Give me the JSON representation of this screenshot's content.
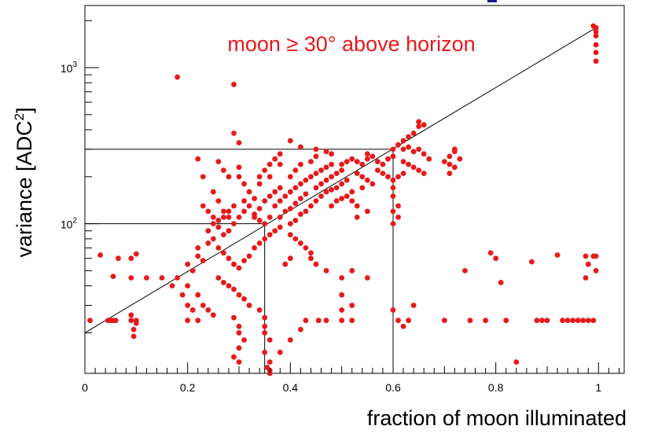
{
  "chart_data": {
    "type": "scatter",
    "annotation": "moon ≥ 30° above horizon",
    "xlabel": "fraction of moon illuminated",
    "ylabel": "variance [ADC²]",
    "ylabel_main": "variance [ADC",
    "ylabel_sup": "2",
    "ylabel_end": "]",
    "xlim": [
      0,
      1.05
    ],
    "ylim": [
      11,
      2500
    ],
    "yscale": "log",
    "x_ticks": [
      0,
      0.2,
      0.4,
      0.6,
      0.8,
      1
    ],
    "x_tick_labels": [
      "0",
      "0.2",
      "0.4",
      "0.6",
      "0.8",
      "1"
    ],
    "y_ticks": [
      100,
      1000
    ],
    "y_tick_labels": [
      {
        "base": "10",
        "exp": "2"
      },
      {
        "base": "10",
        "exp": "3"
      }
    ],
    "grid": false,
    "colors": {
      "points": "#e8191b",
      "annotation": "#e8191b",
      "lines": "#000000"
    },
    "fit_line": {
      "x": [
        0,
        0.995
      ],
      "y": [
        20,
        1800
      ]
    },
    "guide_lines": [
      {
        "x": 0.35,
        "y": 100
      },
      {
        "x": 0.6,
        "y": 300
      }
    ],
    "series": [
      {
        "points": [
          [
            0.01,
            24
          ],
          [
            0.03,
            63
          ],
          [
            0.045,
            24
          ],
          [
            0.05,
            24
          ],
          [
            0.055,
            24
          ],
          [
            0.06,
            24
          ],
          [
            0.055,
            46
          ],
          [
            0.065,
            60
          ],
          [
            0.09,
            26
          ],
          [
            0.09,
            24
          ],
          [
            0.095,
            21
          ],
          [
            0.095,
            19
          ],
          [
            0.1,
            24
          ],
          [
            0.1,
            23
          ],
          [
            0.09,
            45
          ],
          [
            0.09,
            60
          ],
          [
            0.1,
            64
          ],
          [
            0.12,
            45
          ],
          [
            0.15,
            45
          ],
          [
            0.18,
            870
          ],
          [
            0.18,
            45
          ],
          [
            0.17,
            40
          ],
          [
            0.19,
            35
          ],
          [
            0.2,
            30
          ],
          [
            0.21,
            28
          ],
          [
            0.2,
            24
          ],
          [
            0.22,
            24
          ],
          [
            0.2,
            55
          ],
          [
            0.21,
            50
          ],
          [
            0.22,
            62
          ],
          [
            0.23,
            58
          ],
          [
            0.22,
            70
          ],
          [
            0.24,
            75
          ],
          [
            0.25,
            80
          ],
          [
            0.22,
            260
          ],
          [
            0.23,
            200
          ],
          [
            0.25,
            160
          ],
          [
            0.26,
            140
          ],
          [
            0.27,
            120
          ],
          [
            0.28,
            110
          ],
          [
            0.29,
            780
          ],
          [
            0.29,
            380
          ],
          [
            0.3,
            330
          ],
          [
            0.3,
            230
          ],
          [
            0.3,
            200
          ],
          [
            0.31,
            180
          ],
          [
            0.24,
            90
          ],
          [
            0.25,
            100
          ],
          [
            0.26,
            95
          ],
          [
            0.27,
            85
          ],
          [
            0.28,
            90
          ],
          [
            0.29,
            100
          ],
          [
            0.3,
            110
          ],
          [
            0.31,
            120
          ],
          [
            0.32,
            130
          ],
          [
            0.33,
            115
          ],
          [
            0.34,
            105
          ],
          [
            0.35,
            100
          ],
          [
            0.36,
            110
          ],
          [
            0.26,
            70
          ],
          [
            0.27,
            65
          ],
          [
            0.28,
            60
          ],
          [
            0.29,
            55
          ],
          [
            0.3,
            52
          ],
          [
            0.31,
            58
          ],
          [
            0.32,
            62
          ],
          [
            0.33,
            70
          ],
          [
            0.34,
            75
          ],
          [
            0.35,
            80
          ],
          [
            0.36,
            85
          ],
          [
            0.37,
            90
          ],
          [
            0.38,
            95
          ],
          [
            0.26,
            45
          ],
          [
            0.27,
            42
          ],
          [
            0.28,
            40
          ],
          [
            0.29,
            38
          ],
          [
            0.3,
            35
          ],
          [
            0.31,
            33
          ],
          [
            0.32,
            30
          ],
          [
            0.29,
            25
          ],
          [
            0.3,
            22
          ],
          [
            0.3,
            20
          ],
          [
            0.31,
            18
          ],
          [
            0.3,
            16
          ],
          [
            0.29,
            14
          ],
          [
            0.3,
            13
          ],
          [
            0.34,
            28
          ],
          [
            0.35,
            25
          ],
          [
            0.35,
            22
          ],
          [
            0.35,
            20
          ],
          [
            0.36,
            18
          ],
          [
            0.35,
            15
          ],
          [
            0.36,
            13
          ],
          [
            0.355,
            12
          ],
          [
            0.36,
            11.5
          ],
          [
            0.36,
            11
          ],
          [
            0.33,
            110
          ],
          [
            0.34,
            125
          ],
          [
            0.35,
            140
          ],
          [
            0.36,
            150
          ],
          [
            0.37,
            160
          ],
          [
            0.38,
            170
          ],
          [
            0.37,
            130
          ],
          [
            0.38,
            140
          ],
          [
            0.39,
            150
          ],
          [
            0.4,
            160
          ],
          [
            0.41,
            170
          ],
          [
            0.42,
            180
          ],
          [
            0.38,
            110
          ],
          [
            0.39,
            120
          ],
          [
            0.4,
            125
          ],
          [
            0.41,
            135
          ],
          [
            0.42,
            145
          ],
          [
            0.43,
            155
          ],
          [
            0.4,
            100
          ],
          [
            0.41,
            105
          ],
          [
            0.42,
            115
          ],
          [
            0.43,
            120
          ],
          [
            0.44,
            130
          ],
          [
            0.45,
            140
          ],
          [
            0.4,
            85
          ],
          [
            0.41,
            80
          ],
          [
            0.42,
            75
          ],
          [
            0.43,
            70
          ],
          [
            0.44,
            65
          ],
          [
            0.4,
            60
          ],
          [
            0.39,
            55
          ],
          [
            0.43,
            190
          ],
          [
            0.44,
            200
          ],
          [
            0.45,
            210
          ],
          [
            0.46,
            220
          ],
          [
            0.47,
            230
          ],
          [
            0.48,
            240
          ],
          [
            0.45,
            170
          ],
          [
            0.46,
            180
          ],
          [
            0.47,
            190
          ],
          [
            0.48,
            200
          ],
          [
            0.49,
            210
          ],
          [
            0.5,
            220
          ],
          [
            0.46,
            150
          ],
          [
            0.47,
            160
          ],
          [
            0.48,
            165
          ],
          [
            0.49,
            170
          ],
          [
            0.5,
            180
          ],
          [
            0.51,
            190
          ],
          [
            0.48,
            130
          ],
          [
            0.49,
            140
          ],
          [
            0.5,
            145
          ],
          [
            0.51,
            150
          ],
          [
            0.52,
            160
          ],
          [
            0.5,
            240
          ],
          [
            0.51,
            250
          ],
          [
            0.52,
            260
          ],
          [
            0.53,
            250
          ],
          [
            0.54,
            240
          ],
          [
            0.55,
            260
          ],
          [
            0.55,
            280
          ],
          [
            0.56,
            270
          ],
          [
            0.57,
            250
          ],
          [
            0.58,
            240
          ],
          [
            0.59,
            260
          ],
          [
            0.6,
            270
          ],
          [
            0.57,
            220
          ],
          [
            0.58,
            210
          ],
          [
            0.59,
            200
          ],
          [
            0.6,
            190
          ],
          [
            0.61,
            200
          ],
          [
            0.62,
            210
          ],
          [
            0.6,
            300
          ],
          [
            0.61,
            320
          ],
          [
            0.62,
            340
          ],
          [
            0.63,
            360
          ],
          [
            0.64,
            380
          ],
          [
            0.65,
            420
          ],
          [
            0.62,
            300
          ],
          [
            0.63,
            310
          ],
          [
            0.64,
            290
          ],
          [
            0.65,
            300
          ],
          [
            0.66,
            280
          ],
          [
            0.67,
            260
          ],
          [
            0.6,
            170
          ],
          [
            0.6,
            150
          ],
          [
            0.61,
            130
          ],
          [
            0.6,
            120
          ],
          [
            0.61,
            110
          ],
          [
            0.6,
            100
          ],
          [
            0.62,
            250
          ],
          [
            0.63,
            240
          ],
          [
            0.64,
            230
          ],
          [
            0.65,
            220
          ],
          [
            0.66,
            210
          ],
          [
            0.6,
            28
          ],
          [
            0.61,
            24
          ],
          [
            0.62,
            22
          ],
          [
            0.63,
            24
          ],
          [
            0.64,
            30
          ],
          [
            0.455,
            24
          ],
          [
            0.47,
            24
          ],
          [
            0.5,
            24
          ],
          [
            0.52,
            24
          ],
          [
            0.44,
            60
          ],
          [
            0.45,
            55
          ],
          [
            0.47,
            50
          ],
          [
            0.5,
            45
          ],
          [
            0.52,
            50
          ],
          [
            0.55,
            45
          ],
          [
            0.5,
            35
          ],
          [
            0.52,
            30
          ],
          [
            0.5,
            28
          ],
          [
            0.43,
            24
          ],
          [
            0.42,
            21
          ],
          [
            0.4,
            18
          ],
          [
            0.38,
            15
          ],
          [
            0.65,
            450
          ],
          [
            0.66,
            430
          ],
          [
            0.7,
            250
          ],
          [
            0.71,
            240
          ],
          [
            0.72,
            230
          ],
          [
            0.71,
            270
          ],
          [
            0.72,
            290
          ],
          [
            0.73,
            260
          ],
          [
            0.72,
            300
          ],
          [
            0.71,
            210
          ],
          [
            0.7,
            24
          ],
          [
            0.74,
            50
          ],
          [
            0.75,
            24
          ],
          [
            0.78,
            24
          ],
          [
            0.79,
            65
          ],
          [
            0.8,
            60
          ],
          [
            0.81,
            42
          ],
          [
            0.82,
            24
          ],
          [
            0.84,
            13
          ],
          [
            0.87,
            57
          ],
          [
            0.88,
            24
          ],
          [
            0.89,
            24
          ],
          [
            0.9,
            24
          ],
          [
            0.92,
            63
          ],
          [
            0.93,
            24
          ],
          [
            0.94,
            24
          ],
          [
            0.95,
            24
          ],
          [
            0.96,
            24
          ],
          [
            0.97,
            24
          ],
          [
            0.98,
            24
          ],
          [
            0.99,
            24
          ],
          [
            0.975,
            62
          ],
          [
            0.98,
            55
          ],
          [
            0.975,
            45
          ],
          [
            0.99,
            62
          ],
          [
            0.995,
            62
          ],
          [
            0.995,
            50
          ],
          [
            0.995,
            1800
          ],
          [
            0.995,
            1700
          ],
          [
            0.995,
            1600
          ],
          [
            0.995,
            1400
          ],
          [
            0.995,
            1250
          ],
          [
            0.995,
            1100
          ],
          [
            0.99,
            1850
          ],
          [
            0.26,
            250
          ],
          [
            0.27,
            220
          ],
          [
            0.28,
            200
          ],
          [
            0.34,
            200
          ],
          [
            0.35,
            220
          ],
          [
            0.36,
            240
          ],
          [
            0.37,
            260
          ],
          [
            0.38,
            280
          ],
          [
            0.4,
            200
          ],
          [
            0.41,
            220
          ],
          [
            0.42,
            240
          ],
          [
            0.44,
            250
          ],
          [
            0.45,
            270
          ],
          [
            0.38,
            240
          ],
          [
            0.36,
            200
          ],
          [
            0.34,
            180
          ],
          [
            0.32,
            160
          ],
          [
            0.33,
            145
          ],
          [
            0.31,
            140
          ],
          [
            0.29,
            130
          ],
          [
            0.28,
            120
          ],
          [
            0.27,
            110
          ],
          [
            0.26,
            105
          ],
          [
            0.25,
            110
          ],
          [
            0.24,
            120
          ],
          [
            0.23,
            130
          ],
          [
            0.4,
            340
          ],
          [
            0.42,
            310
          ],
          [
            0.45,
            300
          ],
          [
            0.47,
            290
          ],
          [
            0.48,
            280
          ],
          [
            0.53,
            210
          ],
          [
            0.54,
            200
          ],
          [
            0.55,
            190
          ],
          [
            0.56,
            180
          ],
          [
            0.54,
            170
          ],
          [
            0.52,
            140
          ],
          [
            0.53,
            130
          ],
          [
            0.55,
            120
          ],
          [
            0.53,
            110
          ],
          [
            0.2,
            40
          ],
          [
            0.22,
            35
          ],
          [
            0.23,
            30
          ],
          [
            0.24,
            28
          ],
          [
            0.25,
            26
          ]
        ]
      }
    ]
  }
}
